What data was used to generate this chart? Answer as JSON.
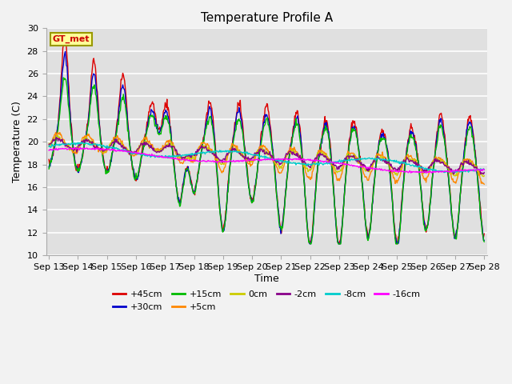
{
  "title": "Temperature Profile A",
  "xlabel": "Time",
  "ylabel": "Temperature (C)",
  "ylim": [
    10,
    30
  ],
  "x_tick_labels": [
    "Sep 13",
    "Sep 14",
    "Sep 15",
    "Sep 16",
    "Sep 17",
    "Sep 18",
    "Sep 19",
    "Sep 20",
    "Sep 21",
    "Sep 22",
    "Sep 23",
    "Sep 24",
    "Sep 25",
    "Sep 26",
    "Sep 27",
    "Sep 28"
  ],
  "series": [
    {
      "label": "+45cm",
      "color": "#dd0000"
    },
    {
      "label": "+30cm",
      "color": "#0000cc"
    },
    {
      "label": "+15cm",
      "color": "#00bb00"
    },
    {
      "label": "+5cm",
      "color": "#ff8800"
    },
    {
      "label": "0cm",
      "color": "#cccc00"
    },
    {
      "label": "-2cm",
      "color": "#880088"
    },
    {
      "label": "-8cm",
      "color": "#00cccc"
    },
    {
      "label": "-16cm",
      "color": "#ff00ff"
    }
  ],
  "legend_label": "GT_met",
  "legend_label_color": "#cc0000",
  "legend_box_facecolor": "#ffff99",
  "legend_box_edgecolor": "#999900",
  "bg_color": "#e0e0e0",
  "grid_color": "#ffffff",
  "title_fontsize": 11,
  "axis_fontsize": 9,
  "tick_fontsize": 8
}
